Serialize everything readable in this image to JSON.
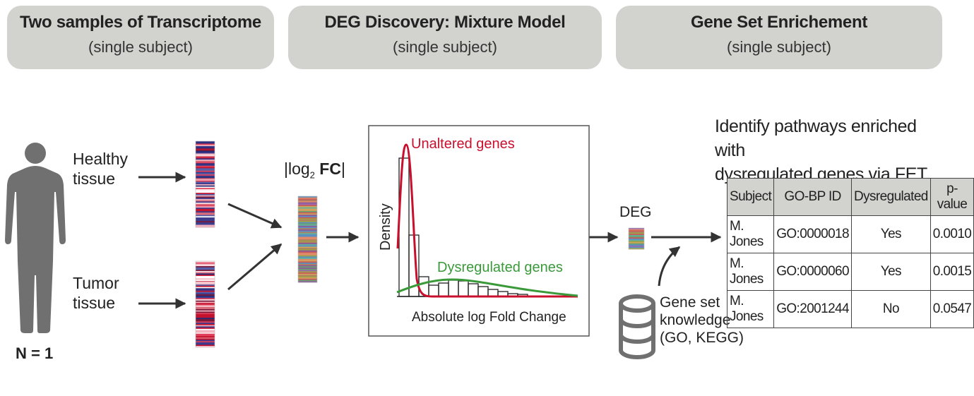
{
  "banners": [
    {
      "title": "Two samples of Transcriptome",
      "subtitle": "(single subject)"
    },
    {
      "title": "DEG Discovery: Mixture Model",
      "subtitle": "(single subject)"
    },
    {
      "title": "Gene Set Enrichement",
      "subtitle": "(single subject)"
    }
  ],
  "stage1": {
    "healthy_1": "Healthy",
    "healthy_2": "tissue",
    "tumor_1": "Tumor",
    "tumor_2": "tissue",
    "n_label": "N = 1"
  },
  "fc_label": {
    "pre": "|log",
    "sub": "2",
    "bold": "FC",
    "post": "|"
  },
  "mixture": {
    "unaltered": "Unaltered genes",
    "dysregulated": "Dysregulated genes",
    "ylabel": "Density",
    "xlabel": "Absolute log Fold Change"
  },
  "deg_label": "DEG",
  "knowledge": {
    "line1": "Gene set",
    "line2": "knowledge",
    "line3": "(GO, KEGG)"
  },
  "enrich": {
    "line1": "Identify pathways enriched with",
    "line2": "dysregulated genes via FET"
  },
  "table": {
    "headers": [
      "Subject",
      "GO-BP ID",
      "Dysregulated",
      "p-value"
    ],
    "rows": [
      [
        "M. Jones",
        "GO:0000018",
        "Yes",
        "0.0010"
      ],
      [
        "M. Jones",
        "GO:0000060",
        "Yes",
        "0.0015"
      ],
      [
        "M. Jones",
        "GO:2001244",
        "No",
        "0.0547"
      ]
    ]
  },
  "colors": {
    "banner": "#d2d2cf",
    "unaltered_curve": "#c8102e",
    "dysregulated_curve": "#3a9a3a",
    "figure": "#707070"
  }
}
